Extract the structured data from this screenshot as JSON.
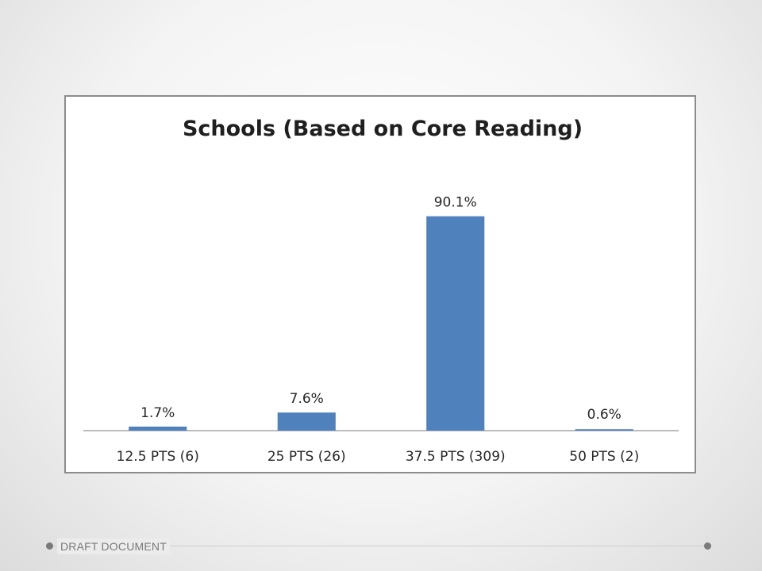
{
  "chart_data": {
    "type": "bar",
    "title": "Schools (Based on Core Reading)",
    "categories": [
      "12.5 PTS (6)",
      "25 PTS (26)",
      "37.5 PTS (309)",
      "50 PTS (2)"
    ],
    "values": [
      1.7,
      7.6,
      90.1,
      0.6
    ],
    "data_labels": [
      "1.7%",
      "7.6%",
      "90.1%",
      "0.6%"
    ],
    "xlabel": "",
    "ylabel": "",
    "ylim": [
      0,
      100
    ],
    "grid": false,
    "legend": "none",
    "bar_color": "#4f81bd"
  },
  "footer": {
    "text": "DRAFT DOCUMENT"
  }
}
